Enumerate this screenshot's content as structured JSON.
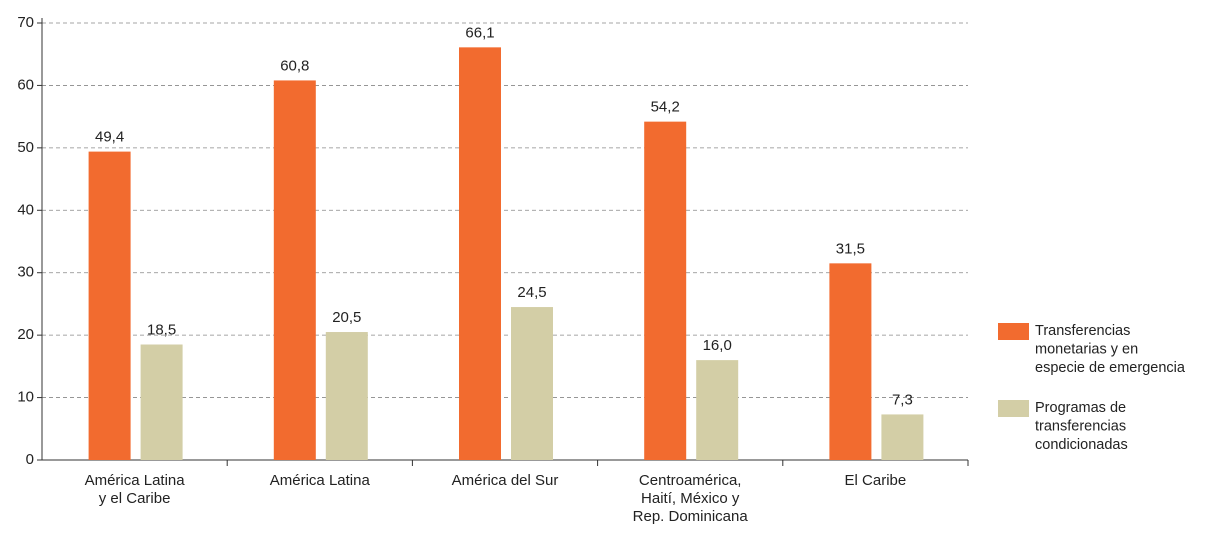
{
  "chart_data": {
    "type": "bar",
    "categories": [
      "América Latina\ny el Caribe",
      "América Latina",
      "América del Sur",
      "Centroamérica,\nHaití, México y\nRep. Dominicana",
      "El Caribe"
    ],
    "series": [
      {
        "name": "Transferencias\nmonetarias y en\nespecie de emergencia",
        "color": "#f26b2f",
        "values": [
          49.4,
          60.8,
          66.1,
          54.2,
          31.5
        ],
        "value_labels": [
          "49,4",
          "60,8",
          "66,1",
          "54,2",
          "31,5"
        ]
      },
      {
        "name": "Programas de\ntransferencias\ncondicionadas",
        "color": "#d3cea6",
        "values": [
          18.5,
          20.5,
          24.5,
          16.0,
          7.3
        ],
        "value_labels": [
          "18,5",
          "20,5",
          "24,5",
          "16,0",
          "7,3"
        ]
      }
    ],
    "ylim": [
      0,
      70
    ],
    "yticks": [
      0,
      10,
      20,
      30,
      40,
      50,
      60,
      70
    ],
    "grid": true,
    "legend": "right"
  }
}
